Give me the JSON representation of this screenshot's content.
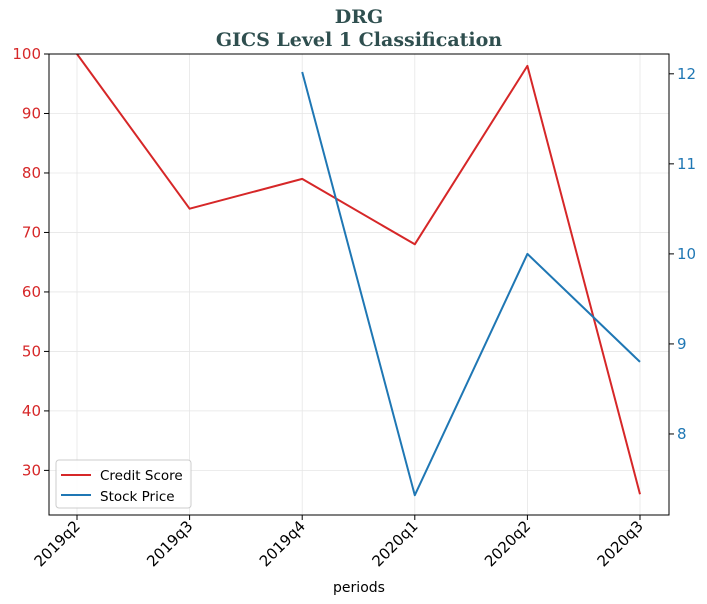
{
  "chart_data": {
    "type": "line",
    "title": "DRG",
    "subtitle": "GICS Level 1 Classification",
    "xlabel": "periods",
    "categories": [
      "2019q2",
      "2019q3",
      "2019q4",
      "2020q1",
      "2020q2",
      "2020q3"
    ],
    "y_left": {
      "ylim": [
        22.5,
        100
      ],
      "ticks": [
        30,
        40,
        50,
        60,
        70,
        80,
        90,
        100
      ],
      "color": "#d62728"
    },
    "y_right": {
      "ylim": [
        7.1,
        12.22
      ],
      "ticks": [
        8,
        9,
        10,
        11,
        12
      ],
      "color": "#1f77b4"
    },
    "series": [
      {
        "name": "Credit Score",
        "axis": "left",
        "color": "#d62728",
        "values": [
          100,
          74,
          79,
          68,
          98,
          26
        ]
      },
      {
        "name": "Stock Price",
        "axis": "right",
        "color": "#1f77b4",
        "values": [
          null,
          null,
          12.02,
          7.32,
          10.0,
          8.8
        ]
      }
    ],
    "grid": true,
    "legend_position": "lower-left"
  }
}
